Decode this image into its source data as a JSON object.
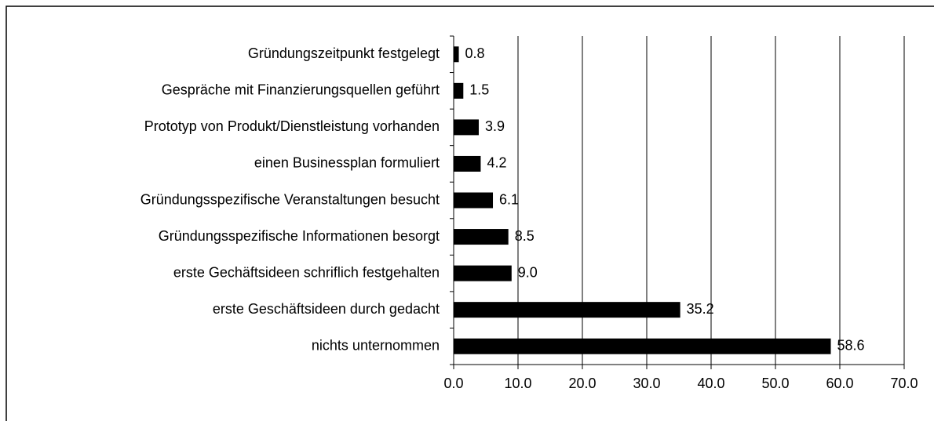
{
  "chart_data": {
    "type": "barh",
    "categories": [
      "Gründungszeitpunkt festgelegt",
      "Gespräche mit Finanzierungsquellen geführt",
      "Prototyp von Produkt/Dienstleistung vorhanden",
      "einen Businessplan formuliert",
      "Gründungsspezifische Veranstaltungen besucht",
      "Gründungsspezifische Informationen besorgt",
      "erste Gechäftsideen schriflich festgehalten",
      "erste Geschäftsideen durch gedacht",
      "nichts unternommen"
    ],
    "values": [
      0.8,
      1.5,
      3.9,
      4.2,
      6.1,
      8.5,
      9.0,
      35.2,
      58.6
    ],
    "value_labels": [
      "0.8",
      "1.5",
      "3.9",
      "4.2",
      "6.1",
      "8.5",
      "9.0",
      "35.2",
      "58.6"
    ],
    "color": "#000000",
    "xlim": [
      0,
      70
    ],
    "xticks": [
      {
        "value": 0,
        "label": "0.0"
      },
      {
        "value": 10,
        "label": "10.0"
      },
      {
        "value": 20,
        "label": "20.0"
      },
      {
        "value": 30,
        "label": "30.0"
      },
      {
        "value": 40,
        "label": "40.0"
      },
      {
        "value": 50,
        "label": "50.0"
      },
      {
        "value": 60,
        "label": "60.0"
      },
      {
        "value": 70,
        "label": "70.0"
      }
    ],
    "grid": true
  }
}
